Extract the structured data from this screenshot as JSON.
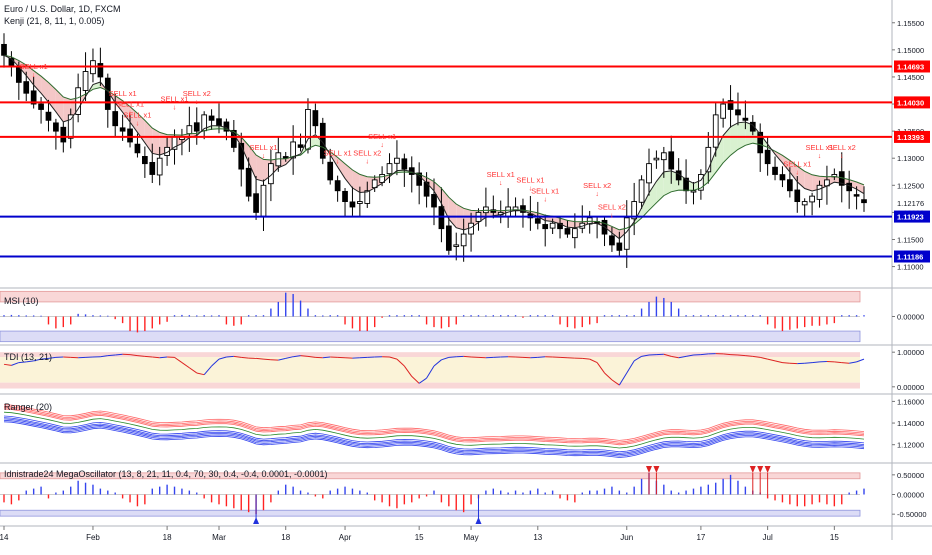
{
  "header": {
    "symbol_line": "Euro / U.S. Dollar, 1D, FXCM",
    "indicator_line": "Kenji (21, 8, 11, 1, 0.005)"
  },
  "colors": {
    "up": "#ffffff",
    "down": "#000000",
    "resistance": "#ff0000",
    "support": "#0000cc",
    "signal": "#ff3333",
    "cloud_bear": "#f4c7c7",
    "cloud_bull": "#d9f1d0",
    "cloud_neutral": "#c9d3f4",
    "axis_label_res": "#ff0000",
    "axis_label_sup": "#0000cc",
    "pos_bar": "#3344ee",
    "neg_bar": "#ff2222"
  },
  "chart_data": [
    {
      "id": "main",
      "type": "candlestick",
      "ylim": [
        1.1066,
        1.1592
      ],
      "yticks": [
        "1.15500",
        "1.15000",
        "1.14500",
        "1.14000",
        "1.13500",
        "1.13000",
        "1.12500",
        "1.12000",
        "1.11500",
        "1.11000"
      ],
      "last_price": "1.12176",
      "xticks": [
        "14",
        "Feb",
        "18",
        "Mar",
        "18",
        "Apr",
        "15",
        "May",
        "13",
        "Jun",
        "17",
        "Jul",
        "15"
      ],
      "xtick_index": [
        0,
        12,
        22,
        29,
        38,
        46,
        56,
        63,
        72,
        84,
        94,
        103,
        112
      ],
      "bar_count": 117,
      "levels": [
        {
          "label": "1.14693",
          "value": 1.14693,
          "kind": "resistance"
        },
        {
          "label": "1.14030",
          "value": 1.1403,
          "kind": "resistance"
        },
        {
          "label": "1.13393",
          "value": 1.13393,
          "kind": "resistance"
        },
        {
          "label": "1.11923",
          "value": 1.11923,
          "kind": "support"
        },
        {
          "label": "1.11186",
          "value": 1.11186,
          "kind": "support"
        }
      ],
      "closes": [
        1.149,
        1.147,
        1.144,
        1.142,
        1.14,
        1.139,
        1.137,
        1.135,
        1.133,
        1.138,
        1.143,
        1.146,
        1.148,
        1.145,
        1.139,
        1.136,
        1.135,
        1.133,
        1.131,
        1.129,
        1.127,
        1.13,
        1.132,
        1.134,
        1.134,
        1.136,
        1.135,
        1.138,
        1.137,
        1.136,
        1.135,
        1.132,
        1.128,
        1.123,
        1.12,
        1.125,
        1.129,
        1.131,
        1.13,
        1.133,
        1.132,
        1.139,
        1.136,
        1.13,
        1.126,
        1.124,
        1.122,
        1.121,
        1.122,
        1.124,
        1.126,
        1.127,
        1.129,
        1.13,
        1.128,
        1.127,
        1.125,
        1.123,
        1.121,
        1.117,
        1.113,
        1.114,
        1.116,
        1.118,
        1.12,
        1.121,
        1.12,
        1.12,
        1.121,
        1.121,
        1.12,
        1.119,
        1.118,
        1.117,
        1.118,
        1.117,
        1.116,
        1.117,
        1.118,
        1.119,
        1.118,
        1.116,
        1.114,
        1.113,
        1.119,
        1.122,
        1.126,
        1.129,
        1.13,
        1.131,
        1.128,
        1.126,
        1.124,
        1.124,
        1.127,
        1.132,
        1.138,
        1.14,
        1.139,
        1.138,
        1.137,
        1.135,
        1.131,
        1.129,
        1.127,
        1.126,
        1.124,
        1.122,
        1.122,
        1.123,
        1.125,
        1.126,
        1.127,
        1.125,
        1.124,
        1.123,
        1.1218
      ],
      "signals": [
        {
          "i": 4,
          "text": "SELL x1"
        },
        {
          "i": 16,
          "text": "SELL x1"
        },
        {
          "i": 17,
          "text": "SELL x1"
        },
        {
          "i": 18,
          "text": "SELL x1"
        },
        {
          "i": 23,
          "text": "SELL x1"
        },
        {
          "i": 26,
          "text": "SELL x2"
        },
        {
          "i": 35,
          "text": "SELL x1"
        },
        {
          "i": 45,
          "text": "SELL x1"
        },
        {
          "i": 49,
          "text": "SELL x2"
        },
        {
          "i": 51,
          "text": "SELL x1"
        },
        {
          "i": 67,
          "text": "SELL x1"
        },
        {
          "i": 71,
          "text": "SELL x1"
        },
        {
          "i": 73,
          "text": "SELL x1"
        },
        {
          "i": 80,
          "text": "SELL x2"
        },
        {
          "i": 82,
          "text": "SELL x2"
        },
        {
          "i": 107,
          "text": "SELL x1"
        },
        {
          "i": 110,
          "text": "SELL x1"
        },
        {
          "i": 113,
          "text": "SELL x2"
        }
      ]
    },
    {
      "id": "msi",
      "type": "bar",
      "label": "MSI (10)",
      "ylim": [
        -1,
        1
      ],
      "yticks": [
        "0.00000"
      ],
      "values": [
        0.05,
        0.06,
        0.05,
        0.04,
        0.04,
        0.03,
        -0.3,
        -0.45,
        -0.4,
        -0.3,
        0.1,
        0.08,
        0.05,
        0.04,
        0.03,
        -0.1,
        -0.25,
        -0.55,
        -0.6,
        -0.55,
        -0.45,
        -0.3,
        -0.2,
        0.05,
        0.06,
        0.05,
        0.04,
        0.05,
        0.04,
        0.05,
        -0.3,
        -0.35,
        -0.3,
        0.05,
        0.05,
        0.05,
        0.3,
        0.55,
        0.9,
        0.85,
        0.6,
        0.3,
        0.05,
        0.04,
        0.05,
        0.05,
        -0.3,
        -0.45,
        -0.55,
        -0.55,
        -0.4,
        -0.05,
        0.05,
        0.05,
        0.05,
        0.05,
        0.05,
        -0.3,
        -0.4,
        -0.45,
        -0.4,
        -0.3,
        0.05,
        0.05,
        0.05,
        0.04,
        0.05,
        0.05,
        0.05,
        0.05,
        -0.05,
        0.05,
        0.05,
        0.05,
        0.05,
        -0.3,
        -0.4,
        -0.45,
        -0.4,
        -0.3,
        -0.25,
        0.05,
        0.05,
        0.05,
        0.05,
        0.05,
        0.3,
        0.55,
        0.75,
        0.7,
        0.55,
        0.3,
        0.05,
        0.05,
        0.05,
        0.05,
        0.05,
        0.05,
        0.05,
        0.05,
        0.05,
        0.05,
        0.05,
        -0.3,
        -0.45,
        -0.55,
        -0.5,
        -0.45,
        -0.4,
        -0.35,
        -0.35,
        -0.3,
        -0.25,
        0.05,
        0.05,
        0.05,
        0.05
      ]
    },
    {
      "id": "tdi",
      "type": "line",
      "label": "TDI (13, 21)",
      "ylim": [
        -0.15,
        1.15
      ],
      "yticks": [
        "1.00000",
        "0.00000"
      ],
      "values": [
        0.65,
        0.62,
        0.7,
        0.72,
        0.75,
        0.8,
        0.82,
        0.85,
        0.86,
        0.85,
        0.84,
        0.85,
        0.86,
        0.87,
        0.9,
        0.92,
        0.94,
        0.93,
        0.9,
        0.88,
        0.86,
        0.84,
        0.86,
        0.85,
        0.7,
        0.55,
        0.4,
        0.35,
        0.6,
        0.8,
        0.86,
        0.88,
        0.85,
        0.83,
        0.82,
        0.8,
        0.78,
        0.77,
        0.82,
        0.87,
        0.9,
        0.88,
        0.85,
        0.84,
        0.86,
        0.85,
        0.84,
        0.83,
        0.84,
        0.85,
        0.86,
        0.87,
        0.86,
        0.8,
        0.6,
        0.3,
        0.1,
        0.25,
        0.6,
        0.78,
        0.85,
        0.87,
        0.88,
        0.86,
        0.85,
        0.84,
        0.85,
        0.86,
        0.87,
        0.86,
        0.85,
        0.84,
        0.85,
        0.87,
        0.86,
        0.85,
        0.84,
        0.83,
        0.82,
        0.8,
        0.7,
        0.4,
        0.2,
        0.05,
        0.4,
        0.75,
        0.88,
        0.92,
        0.93,
        0.94,
        0.88,
        0.84,
        0.88,
        0.92,
        0.93,
        0.95,
        0.96,
        0.95,
        0.93,
        0.92,
        0.9,
        0.88,
        0.85,
        0.8,
        0.75,
        0.7,
        0.68,
        0.67,
        0.68,
        0.7,
        0.72,
        0.73,
        0.72,
        0.7,
        0.68,
        0.72,
        0.8
      ]
    },
    {
      "id": "ranger",
      "type": "line",
      "label": "Ranger (20)",
      "ylim": [
        1.104,
        1.165
      ],
      "yticks": [
        "1.16000",
        "1.14000",
        "1.12000"
      ]
    },
    {
      "id": "mega",
      "type": "bar",
      "label": "Idnistrade24 MegaOscillator (13, 8, 21, 11, 0.4, 70, 30, 0.4, -0.4, 0.0001, -0.0001)",
      "ylim": [
        -0.75,
        0.75
      ],
      "yticks": [
        "0.50000",
        "0.00000",
        "-0.50000"
      ],
      "values": [
        -0.2,
        -0.25,
        -0.15,
        0.1,
        0.15,
        0.2,
        -0.1,
        0.05,
        0.1,
        0.2,
        0.35,
        0.3,
        0.25,
        0.15,
        0.1,
        0.05,
        -0.1,
        -0.2,
        -0.3,
        -0.25,
        0.15,
        0.2,
        0.25,
        0.2,
        0.15,
        0.1,
        0.05,
        -0.1,
        -0.2,
        -0.25,
        -0.3,
        -0.35,
        -0.4,
        -0.45,
        -0.5,
        -0.4,
        -0.2,
        0.1,
        0.25,
        0.2,
        0.1,
        0.05,
        -0.05,
        -0.1,
        0.1,
        0.15,
        0.2,
        0.15,
        0.1,
        0.05,
        -0.15,
        -0.2,
        -0.3,
        -0.35,
        -0.25,
        -0.2,
        -0.1,
        -0.05,
        0.1,
        -0.2,
        -0.3,
        -0.4,
        -0.45,
        -0.25,
        -0.1,
        0.1,
        0.15,
        0.1,
        0.05,
        0.1,
        0.05,
        0.1,
        0.15,
        0.05,
        0.1,
        -0.1,
        -0.15,
        -0.2,
        0.05,
        0.1,
        0.1,
        0.15,
        0.2,
        0.1,
        0.05,
        0.2,
        0.4,
        0.55,
        0.35,
        0.25,
        0.1,
        0.05,
        0.1,
        0.15,
        0.2,
        0.25,
        0.3,
        0.4,
        0.5,
        0.35,
        0.2,
        0.1,
        0.05,
        -0.1,
        -0.15,
        -0.2,
        -0.25,
        -0.3,
        -0.3,
        -0.25,
        -0.2,
        -0.25,
        -0.3,
        -0.25,
        0.05,
        0.1,
        0.15
      ],
      "markers": [
        {
          "i": 34,
          "kind": "up"
        },
        {
          "i": 64,
          "kind": "up"
        },
        {
          "i": 87,
          "kind": "down"
        },
        {
          "i": 88,
          "kind": "down"
        },
        {
          "i": 101,
          "kind": "down"
        },
        {
          "i": 102,
          "kind": "down"
        },
        {
          "i": 103,
          "kind": "down"
        }
      ]
    }
  ]
}
